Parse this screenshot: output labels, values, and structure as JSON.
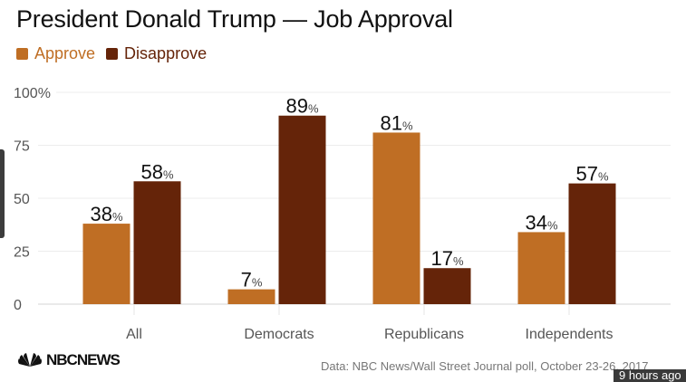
{
  "chart_data": {
    "type": "bar",
    "title": "President Donald Trump — Job Approval",
    "categories": [
      "All",
      "Democrats",
      "Republicans",
      "Independents"
    ],
    "series": [
      {
        "name": "Approve",
        "color": "#bf6e24",
        "values": [
          38,
          7,
          81,
          34
        ]
      },
      {
        "name": "Disapprove",
        "color": "#652409",
        "values": [
          58,
          89,
          17,
          57
        ]
      }
    ],
    "data_label_suffix": "%",
    "xlabel": "",
    "ylabel": "",
    "ylim": [
      0,
      100
    ],
    "yticks": [
      0,
      25,
      50,
      75,
      100
    ],
    "ytick_labels": [
      "0",
      "25",
      "50",
      "75",
      "100%"
    ],
    "grid": true,
    "legend": "top-left"
  },
  "logo": {
    "text": "NBCNEWS"
  },
  "source": "Data: NBC News/Wall Street Journal poll, October 23-26, 2017",
  "timestamp": "9 hours ago"
}
